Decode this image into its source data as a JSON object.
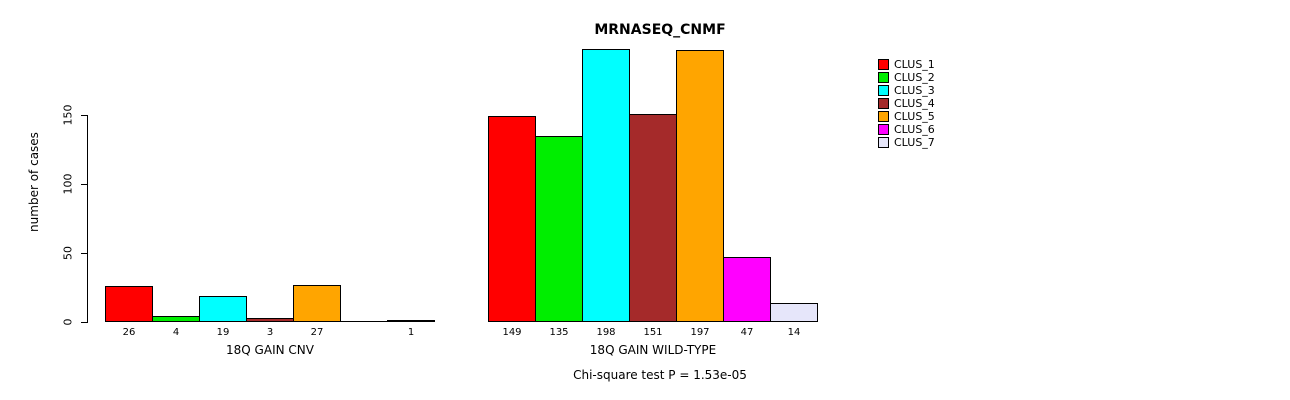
{
  "header": {
    "title": "MRNASEQ_CNMF"
  },
  "footer": {
    "note": "Chi-square test P = 1.53e-05"
  },
  "chart_data": {
    "type": "bar",
    "title": "MRNASEQ_CNMF",
    "xlabel": "",
    "ylabel": "number of cases",
    "ylim": [
      0,
      200
    ],
    "yticks": [
      0,
      50,
      100,
      150
    ],
    "grid": false,
    "legend_position": "top-right",
    "legend_labels": [
      "CLUS_1",
      "CLUS_2",
      "CLUS_3",
      "CLUS_4",
      "CLUS_5",
      "CLUS_6",
      "CLUS_7"
    ],
    "series_colors": [
      "#FF0000",
      "#00EE00",
      "#00FFFF",
      "#A52A2A",
      "#FFA500",
      "#FF00FF",
      "#E6E6FA"
    ],
    "groups": [
      {
        "label": "18Q GAIN CNV",
        "values": [
          26,
          4,
          19,
          3,
          27,
          0,
          1
        ],
        "bar_labels": [
          "26",
          "4",
          "19",
          "3",
          "27",
          "",
          "1"
        ]
      },
      {
        "label": "18Q GAIN WILD-TYPE",
        "values": [
          149,
          135,
          198,
          151,
          197,
          47,
          14
        ],
        "bar_labels": [
          "149",
          "135",
          "198",
          "151",
          "197",
          "47",
          "14"
        ]
      }
    ],
    "annotation": "Chi-square test P = 1.53e-05"
  }
}
